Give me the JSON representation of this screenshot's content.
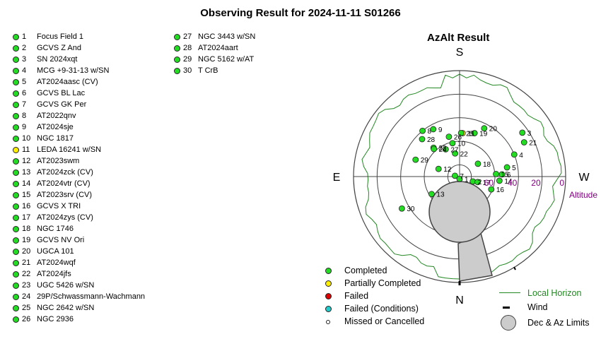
{
  "title": "Observing Result for 2024-11-11  S01266",
  "chart_title": "AzAlt Result",
  "colors": {
    "completed": "#22dd22",
    "partial": "#ffee00",
    "failed": "#dd0000",
    "failed_conditions": "#22cccc",
    "horizon": "#228822",
    "limits_fill": "#cccccc",
    "altitude_label": "#800080"
  },
  "targets_col1": [
    {
      "num": "1",
      "name": "Focus Field 1",
      "status": "completed"
    },
    {
      "num": "2",
      "name": "GCVS Z And",
      "status": "completed"
    },
    {
      "num": "3",
      "name": "SN 2024xqt",
      "status": "completed"
    },
    {
      "num": "4",
      "name": "MCG +9-31-13 w/SN",
      "status": "completed"
    },
    {
      "num": "5",
      "name": "AT2024aasc (CV)",
      "status": "completed"
    },
    {
      "num": "6",
      "name": "GCVS BL Lac",
      "status": "completed"
    },
    {
      "num": "7",
      "name": "GCVS GK Per",
      "status": "completed"
    },
    {
      "num": "8",
      "name": "AT2022qnv",
      "status": "completed"
    },
    {
      "num": "9",
      "name": "AT2024sje",
      "status": "completed"
    },
    {
      "num": "10",
      "name": "NGC 1817",
      "status": "completed"
    },
    {
      "num": "11",
      "name": "LEDA 16241 w/SN",
      "status": "partial"
    },
    {
      "num": "12",
      "name": "AT2023swm",
      "status": "completed"
    },
    {
      "num": "13",
      "name": "AT2024zck (CV)",
      "status": "completed"
    },
    {
      "num": "14",
      "name": "AT2024vtr (CV)",
      "status": "completed"
    },
    {
      "num": "15",
      "name": "AT2023srv (CV)",
      "status": "completed"
    },
    {
      "num": "16",
      "name": "GCVS X TRI",
      "status": "completed"
    },
    {
      "num": "17",
      "name": "AT2024zys (CV)",
      "status": "completed"
    },
    {
      "num": "18",
      "name": "NGC 1746",
      "status": "completed"
    },
    {
      "num": "19",
      "name": "GCVS NV Ori",
      "status": "completed"
    },
    {
      "num": "20",
      "name": "UGCA 101",
      "status": "completed"
    },
    {
      "num": "21",
      "name": "AT2024wqf",
      "status": "completed"
    },
    {
      "num": "22",
      "name": "AT2024jfs",
      "status": "completed"
    },
    {
      "num": "23",
      "name": "UGC 5426 w/SN",
      "status": "completed"
    },
    {
      "num": "24",
      "name": "29P/Schwassmann-Wachmann",
      "status": "completed"
    },
    {
      "num": "25",
      "name": "NGC 2642 w/SN",
      "status": "completed"
    },
    {
      "num": "26",
      "name": "NGC 2936",
      "status": "completed"
    }
  ],
  "targets_col2": [
    {
      "num": "27",
      "name": "NGC 3443 w/SN",
      "status": "completed"
    },
    {
      "num": "28",
      "name": "AT2024aart",
      "status": "completed"
    },
    {
      "num": "29",
      "name": "NGC 5162 w/AT",
      "status": "completed"
    },
    {
      "num": "30",
      "name": "T CrB",
      "status": "completed"
    }
  ],
  "compass": {
    "north": "N",
    "south": "S",
    "east": "E",
    "west": "W"
  },
  "altitude_label": "Altitude",
  "altitude_ticks": [
    "0",
    "20",
    "40",
    "60"
  ],
  "plot_points": [
    {
      "num": "1",
      "az": 0,
      "alt": 88,
      "status": "completed"
    },
    {
      "num": "2",
      "az": 290,
      "alt": 78,
      "status": "completed"
    },
    {
      "num": "3",
      "az": 235,
      "alt": 25,
      "status": "completed"
    },
    {
      "num": "4",
      "az": 248,
      "alt": 40,
      "status": "completed"
    },
    {
      "num": "5",
      "az": 259,
      "alt": 49,
      "status": "completed"
    },
    {
      "num": "6",
      "az": 267,
      "alt": 54,
      "status": "completed"
    },
    {
      "num": "7",
      "az": 100,
      "alt": 86,
      "status": "completed"
    },
    {
      "num": "8",
      "az": 141,
      "alt": 40,
      "status": "completed"
    },
    {
      "num": "9",
      "az": 151,
      "alt": 44,
      "status": "completed"
    },
    {
      "num": "10",
      "az": 168,
      "alt": 61,
      "status": "completed"
    },
    {
      "num": "11",
      "az": 184,
      "alt": 53,
      "status": "partial"
    },
    {
      "num": "12",
      "az": 110,
      "alt": 71,
      "status": "completed"
    },
    {
      "num": "13",
      "az": 58,
      "alt": 62,
      "status": "completed"
    },
    {
      "num": "14",
      "az": 276,
      "alt": 56,
      "status": "completed"
    },
    {
      "num": "15",
      "az": 266,
      "alt": 59,
      "status": "completed"
    },
    {
      "num": "16",
      "az": 292,
      "alt": 61,
      "status": "completed"
    },
    {
      "num": "17",
      "az": 287,
      "alt": 74,
      "status": "completed"
    },
    {
      "num": "18",
      "az": 235,
      "alt": 71,
      "status": "completed"
    },
    {
      "num": "19",
      "az": 199,
      "alt": 51,
      "status": "completed"
    },
    {
      "num": "20",
      "az": 207,
      "alt": 44,
      "status": "completed"
    },
    {
      "num": "21",
      "az": 242,
      "alt": 28,
      "status": "completed"
    },
    {
      "num": "22",
      "az": 169,
      "alt": 70,
      "status": "completed"
    },
    {
      "num": "23",
      "az": 138,
      "alt": 57,
      "status": "completed"
    },
    {
      "num": "24",
      "az": 137,
      "alt": 58,
      "status": "completed"
    },
    {
      "num": "25",
      "az": 182,
      "alt": 53,
      "status": "completed"
    },
    {
      "num": "26",
      "az": 165,
      "alt": 55,
      "status": "completed"
    },
    {
      "num": "27",
      "az": 153,
      "alt": 64,
      "status": "completed"
    },
    {
      "num": "28",
      "az": 135,
      "alt": 45,
      "status": "completed"
    },
    {
      "num": "29",
      "az": 111,
      "alt": 50,
      "status": "completed"
    },
    {
      "num": "30",
      "az": 61,
      "alt": 34,
      "status": "completed"
    }
  ],
  "legend_left": [
    {
      "label": "Completed",
      "status": "completed"
    },
    {
      "label": "Partially Completed",
      "status": "partial"
    },
    {
      "label": "Failed",
      "status": "failed"
    },
    {
      "label": "Failed (Conditions)",
      "status": "failed_conditions"
    },
    {
      "label": "Missed or Cancelled",
      "status": "missed"
    }
  ],
  "legend_right": [
    {
      "label": "Local Horizon",
      "symbol": "line"
    },
    {
      "label": "Wind",
      "symbol": "bar"
    },
    {
      "label": "Dec & Az Limits",
      "symbol": "circle"
    }
  ]
}
